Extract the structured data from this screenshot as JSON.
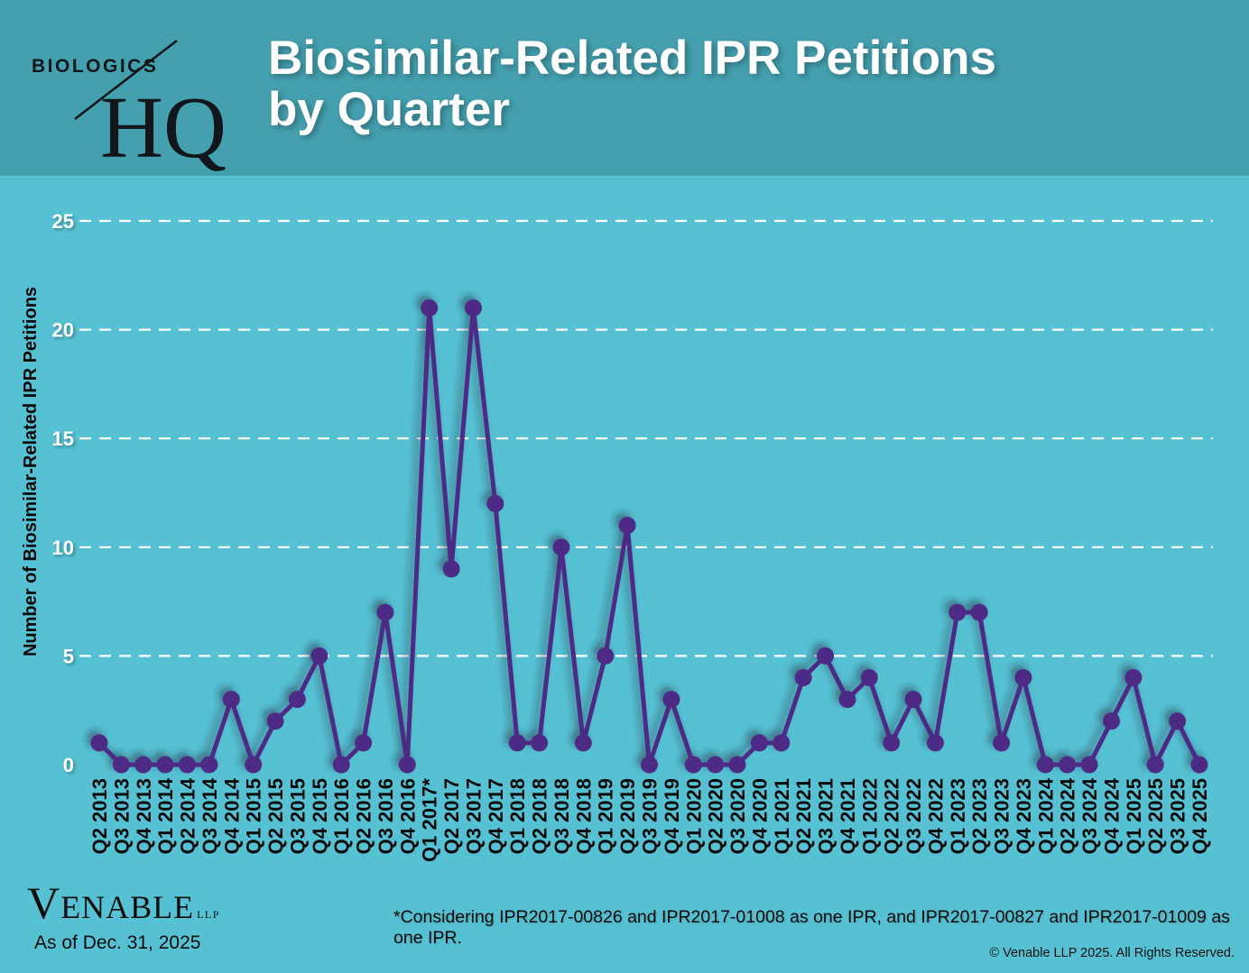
{
  "header": {
    "logo": {
      "brand_top": "BIOLOGICS",
      "brand_bottom": "HQ"
    },
    "title_line1": "Biosimilar-Related IPR Petitions",
    "title_line2": "by Quarter"
  },
  "chart_data": {
    "type": "line",
    "title": "Biosimilar-Related IPR Petitions by Quarter",
    "xlabel": "",
    "ylabel": "Number of Biosimilar-Related IPR Petitions",
    "ylim": [
      0,
      25
    ],
    "yticks": [
      0,
      5,
      10,
      15,
      20,
      25
    ],
    "grid": "horizontal-dashed-white",
    "legend": "none",
    "line_color": "#4d2b86",
    "marker": "circle",
    "categories": [
      "Q2 2013",
      "Q3 2013",
      "Q4 2013",
      "Q1 2014",
      "Q2 2014",
      "Q3 2014",
      "Q4 2014",
      "Q1 2015",
      "Q2 2015",
      "Q3 2015",
      "Q4 2015",
      "Q1 2016",
      "Q2 2016",
      "Q3 2016",
      "Q4 2016",
      "Q1 2017*",
      "Q2 2017",
      "Q3 2017",
      "Q4 2017",
      "Q1 2018",
      "Q2 2018",
      "Q3 2018",
      "Q4 2018",
      "Q1 2019",
      "Q2 2019",
      "Q3 2019",
      "Q4 2019",
      "Q1 2020",
      "Q2 2020",
      "Q3 2020",
      "Q4 2020",
      "Q1 2021",
      "Q2 2021",
      "Q3 2021",
      "Q4 2021",
      "Q1 2022",
      "Q2 2022",
      "Q3 2022",
      "Q4 2022",
      "Q1 2023",
      "Q2 2023",
      "Q3 2023",
      "Q4 2023",
      "Q1 2024",
      "Q2 2024",
      "Q3 2024",
      "Q4 2024",
      "Q1 2025",
      "Q2 2025",
      "Q3 2025",
      "Q4 2025"
    ],
    "values": [
      1,
      0,
      0,
      0,
      0,
      0,
      3,
      0,
      2,
      3,
      5,
      0,
      1,
      7,
      0,
      21,
      9,
      21,
      12,
      1,
      1,
      10,
      1,
      5,
      11,
      0,
      3,
      0,
      0,
      0,
      1,
      1,
      4,
      5,
      3,
      4,
      1,
      3,
      1,
      7,
      7,
      1,
      4,
      0,
      0,
      0,
      2,
      4,
      0,
      2,
      0
    ]
  },
  "footer": {
    "firm_name": "VENABLE",
    "firm_suffix": "LLP",
    "as_of": "As of Dec. 31, 2025",
    "footnote": "*Considering IPR2017-00826 and IPR2017-01008 as one IPR, and IPR2017-00827 and IPR2017-01009 as one IPR.",
    "copyright": "© Venable LLP 2025. All Rights Reserved."
  },
  "colors": {
    "header_bg": "#44a0af",
    "body_bg": "#55c1d3",
    "series": "#4d2b86",
    "grid": "#ffffff",
    "y_tick_text": "#ffffff",
    "x_tick_text": "#000000"
  }
}
